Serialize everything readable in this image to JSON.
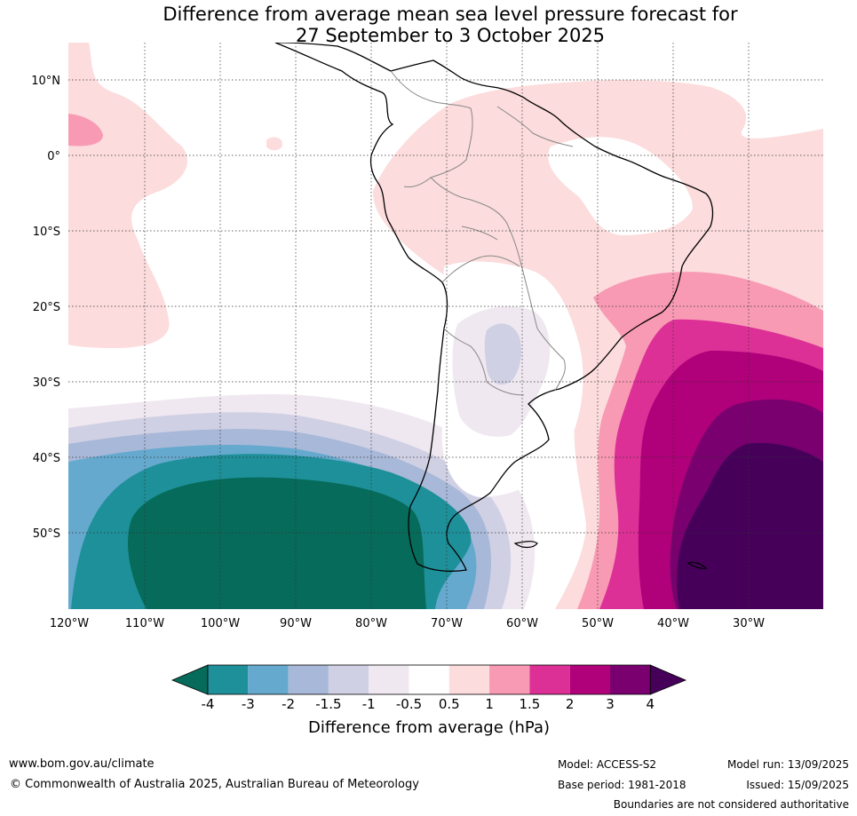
{
  "title_line1": "Difference from average mean sea level pressure forecast for",
  "title_line2": "27 September to 3 October 2025",
  "map": {
    "lon_ticks": [
      "120°W",
      "110°W",
      "100°W",
      "90°W",
      "80°W",
      "70°W",
      "60°W",
      "50°W",
      "40°W",
      "30°W"
    ],
    "lat_ticks": [
      "10°N",
      "0°",
      "10°S",
      "20°S",
      "30°S",
      "40°S",
      "50°S"
    ]
  },
  "colorbar": {
    "title": "Difference from average (hPa)",
    "tick_labels": [
      "-4",
      "-3",
      "-2",
      "-1.5",
      "-1",
      "-0.5",
      "0.5",
      "1",
      "1.5",
      "2",
      "3",
      "4"
    ],
    "colors": [
      "#066b5a",
      "#1e9099",
      "#66a9ce",
      "#a8b8d8",
      "#d0d0e4",
      "#f0e8f0",
      "#ffffff",
      "#fcdcdc",
      "#f89ab4",
      "#dc3096",
      "#b0007a",
      "#7a0070",
      "#46005a"
    ]
  },
  "footer": {
    "website": "www.bom.gov.au/climate",
    "copyright": "© Commonwealth of Australia 2025, Australian Bureau of Meteorology",
    "model": "Model: ACCESS-S2",
    "base_period": "Base period: 1981-2018",
    "model_run": "Model run: 13/09/2025",
    "issued": "Issued: 15/09/2025",
    "disclaimer": "Boundaries are not considered authoritative"
  }
}
